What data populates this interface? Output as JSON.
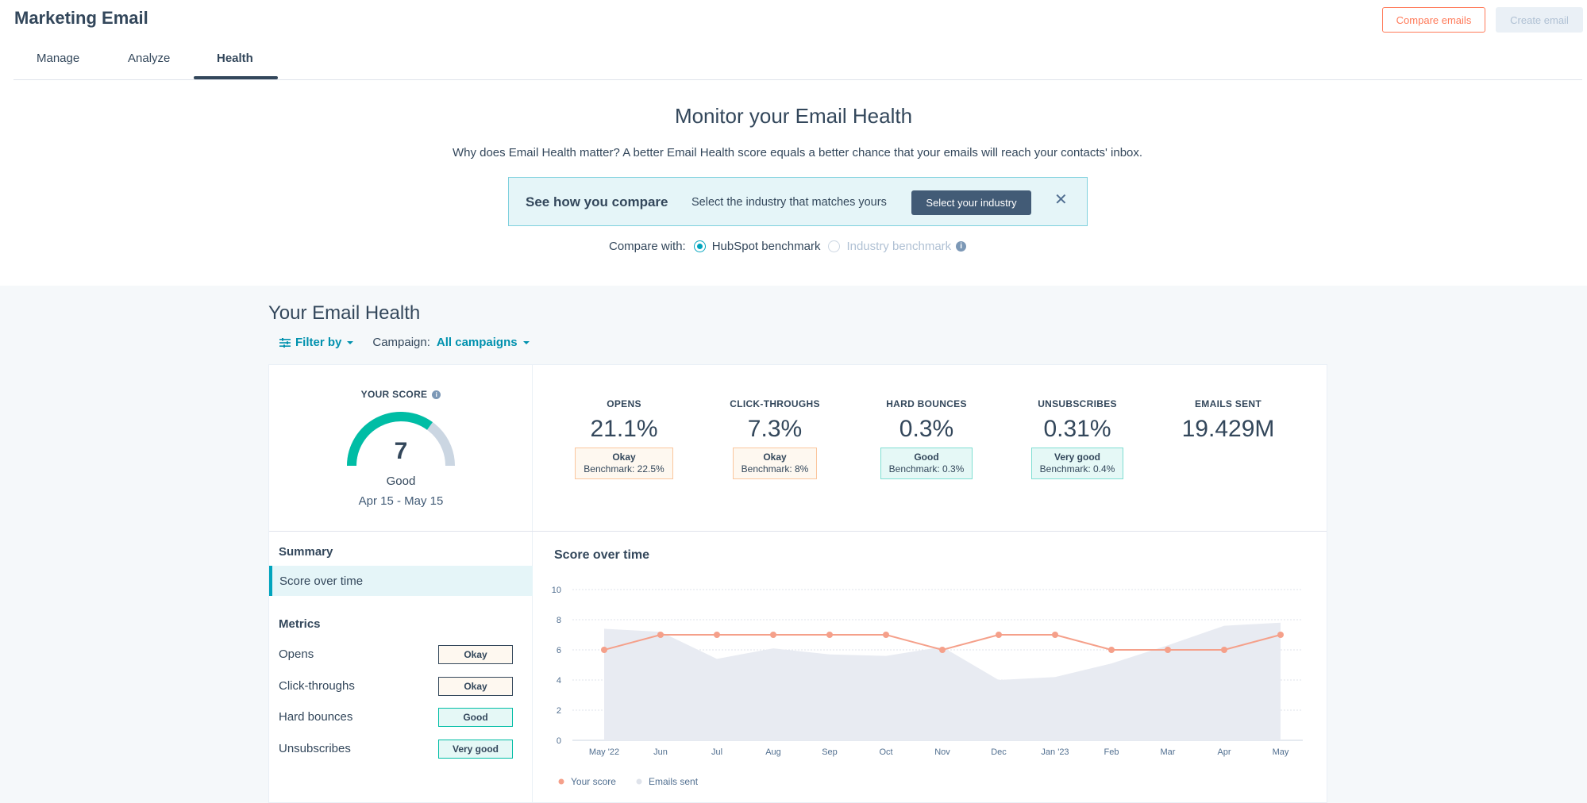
{
  "app": {
    "title": "Marketing Email"
  },
  "header": {
    "compare_label": "Compare emails",
    "create_label": "Create email"
  },
  "tabs": [
    {
      "label": "Manage",
      "active": false
    },
    {
      "label": "Analyze",
      "active": false
    },
    {
      "label": "Health",
      "active": true
    }
  ],
  "hero": {
    "title": "Monitor your Email Health",
    "subtitle": "Why does Email Health matter? A better Email Health score equals a better chance that your emails will reach your contacts' inbox."
  },
  "banner": {
    "title": "See how you compare",
    "text": "Select the industry that matches yours",
    "button": "Select your industry"
  },
  "compare": {
    "label": "Compare with:",
    "options": [
      {
        "label": "HubSpot benchmark",
        "selected": true
      },
      {
        "label": "Industry benchmark",
        "selected": false
      }
    ]
  },
  "health": {
    "title": "Your Email Health",
    "filter_label": "Filter by",
    "campaign_label": "Campaign:",
    "campaign_value": "All campaigns"
  },
  "score": {
    "label": "YOUR SCORE",
    "value": "7",
    "max": 10,
    "rating": "Good",
    "range": "Apr 15 - May 15"
  },
  "metrics": [
    {
      "label": "OPENS",
      "value": "21.1%",
      "status": "Okay",
      "benchmark": "Benchmark: 22.5%",
      "tone": "okay"
    },
    {
      "label": "CLICK-THROUGHS",
      "value": "7.3%",
      "status": "Okay",
      "benchmark": "Benchmark: 8%",
      "tone": "okay"
    },
    {
      "label": "HARD BOUNCES",
      "value": "0.3%",
      "status": "Good",
      "benchmark": "Benchmark: 0.3%",
      "tone": "good"
    },
    {
      "label": "UNSUBSCRIBES",
      "value": "0.31%",
      "status": "Very good",
      "benchmark": "Benchmark: 0.4%",
      "tone": "good"
    },
    {
      "label": "EMAILS SENT",
      "value": "19.429M"
    }
  ],
  "sidebar": {
    "summary_head": "Summary",
    "summary_item": "Score over time",
    "metrics_head": "Metrics",
    "items": [
      {
        "label": "Opens",
        "badge": "Okay",
        "tone": "okay"
      },
      {
        "label": "Click-throughs",
        "badge": "Okay",
        "tone": "okay"
      },
      {
        "label": "Hard bounces",
        "badge": "Good",
        "tone": "good"
      },
      {
        "label": "Unsubscribes",
        "badge": "Very good",
        "tone": "good"
      }
    ]
  },
  "colors": {
    "score_line": "#f5a08a",
    "emails_area": "#e8ebf2",
    "gauge_fill": "#00bda5",
    "gauge_track": "#cbd6e2",
    "accent": "#00a4bd"
  },
  "chart_data": {
    "type": "line",
    "title": "Score over time",
    "categories": [
      "May '22",
      "Jun",
      "Jul",
      "Aug",
      "Sep",
      "Oct",
      "Nov",
      "Dec",
      "Jan '23",
      "Feb",
      "Mar",
      "Apr",
      "May"
    ],
    "ylim": [
      0,
      10
    ],
    "yticks": [
      0,
      2,
      4,
      6,
      8,
      10
    ],
    "grid": true,
    "legend": "bottom-left",
    "series": [
      {
        "name": "Your score",
        "kind": "line",
        "values": [
          6,
          7,
          7,
          7,
          7,
          7,
          6,
          7,
          7,
          6,
          6,
          6,
          7
        ]
      },
      {
        "name": "Emails sent",
        "kind": "area",
        "values": [
          7.4,
          7.2,
          5.4,
          6.1,
          5.7,
          5.6,
          6.2,
          4.0,
          4.2,
          5.1,
          6.3,
          7.6,
          7.8
        ]
      }
    ]
  }
}
